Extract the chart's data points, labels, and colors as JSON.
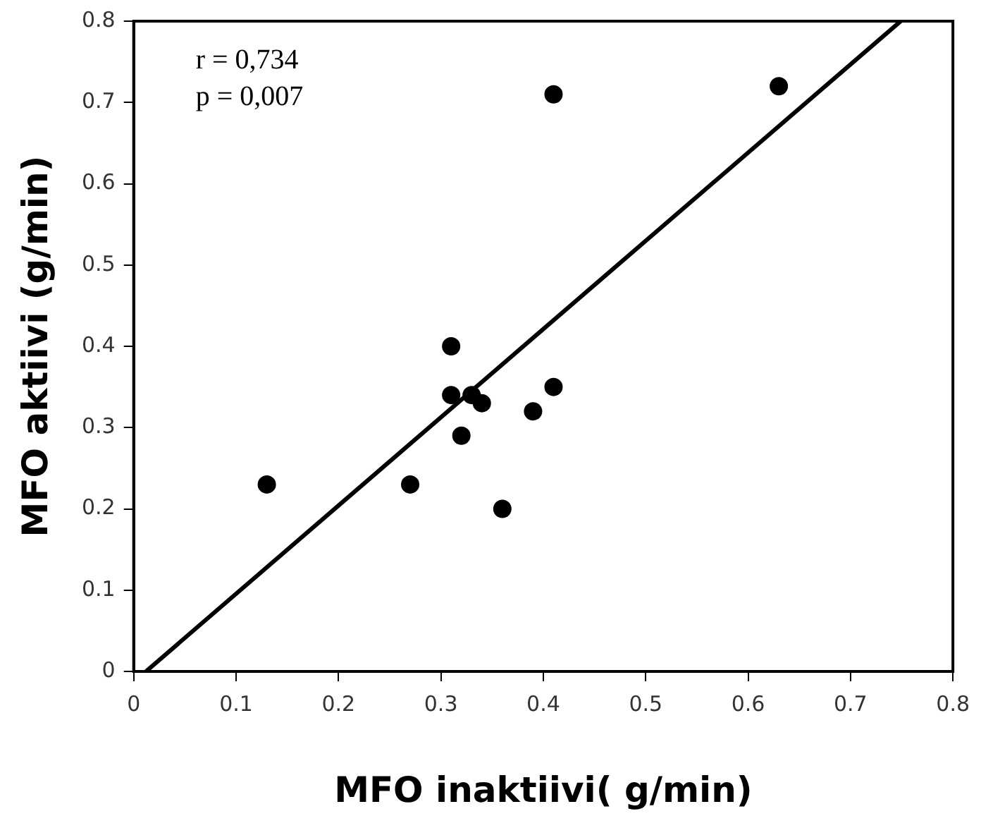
{
  "chart_data": {
    "type": "scatter",
    "xlabel": "MFO inaktiivi( g/min)",
    "ylabel": "MFO aktiivi (g/min)",
    "annotations": [
      "r = 0,734",
      "p = 0,007"
    ],
    "xlim": [
      0,
      0.8
    ],
    "xticks": [
      0,
      0.1,
      0.2,
      0.3,
      0.4,
      0.5,
      0.6,
      0.7,
      0.8
    ],
    "ylim": [
      0,
      0.8
    ],
    "yticks": [
      0,
      0.1,
      0.2,
      0.3,
      0.4,
      0.5,
      0.6,
      0.7,
      0.8
    ],
    "grid": false,
    "legend": false,
    "marker": "circle",
    "series": [
      {
        "color": "#000000",
        "x": [
          0.13,
          0.27,
          0.31,
          0.31,
          0.32,
          0.33,
          0.34,
          0.36,
          0.39,
          0.41,
          0.41,
          0.63
        ],
        "values": [
          0.23,
          0.23,
          0.4,
          0.34,
          0.29,
          0.34,
          0.33,
          0.2,
          0.32,
          0.35,
          0.71,
          0.72
        ]
      },
      {
        "type": "line",
        "color": "#000000",
        "marker": "none",
        "line_style": "solid",
        "x": [
          0.012,
          0.749
        ],
        "values": [
          0,
          0.8
        ]
      }
    ]
  }
}
